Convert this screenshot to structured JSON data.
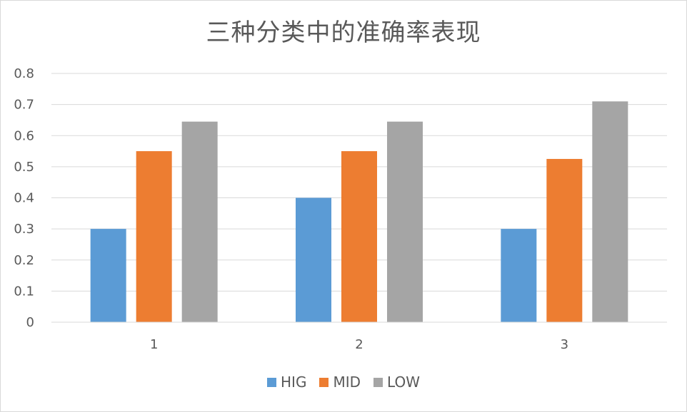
{
  "chart_data": {
    "type": "bar",
    "title": "三种分类中的准确率表现",
    "xlabel": "",
    "ylabel": "",
    "categories": [
      "1",
      "2",
      "3"
    ],
    "series": [
      {
        "name": "HIG",
        "color": "#5b9bd5",
        "values": [
          0.3,
          0.4,
          0.3
        ]
      },
      {
        "name": "MID",
        "color": "#ed7d31",
        "values": [
          0.55,
          0.55,
          0.525
        ]
      },
      {
        "name": "LOW",
        "color": "#a5a5a5",
        "values": [
          0.645,
          0.645,
          0.71
        ]
      }
    ],
    "ylim": [
      0,
      0.8
    ],
    "yticks": [
      "0",
      "0.1",
      "0.2",
      "0.3",
      "0.4",
      "0.5",
      "0.6",
      "0.7",
      "0.8"
    ],
    "grid": true,
    "legend_position": "bottom"
  }
}
